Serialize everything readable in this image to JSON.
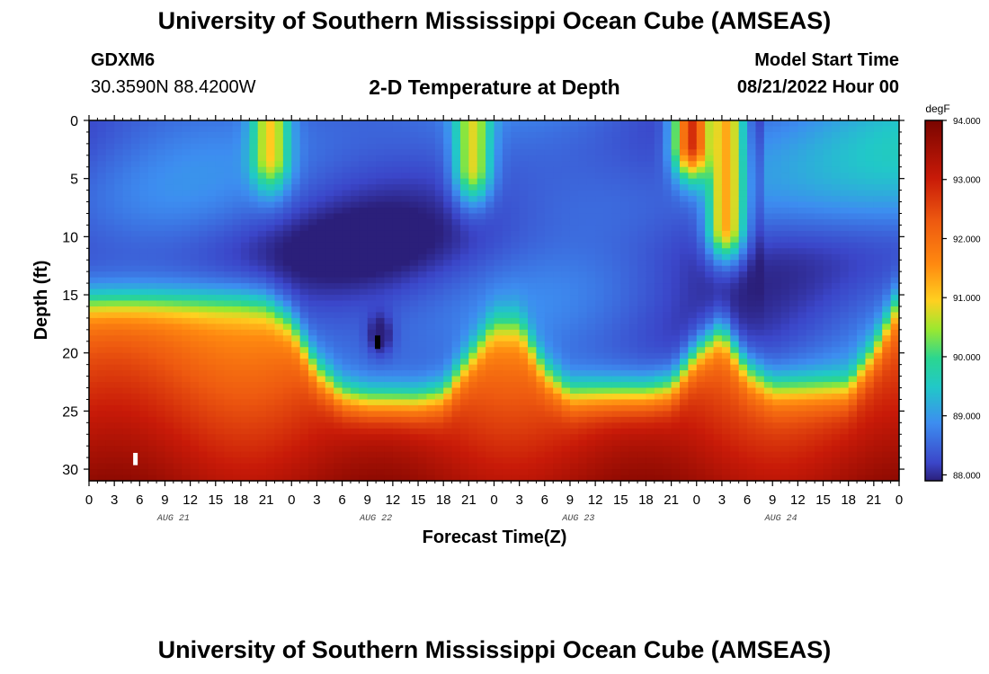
{
  "header": {
    "title": "University of Southern Mississippi Ocean Cube (AMSEAS)",
    "station": "GDXM6",
    "coordinates": "30.3590N  88.4200W",
    "subtitle": "2-D Temperature at Depth",
    "model_start_label": "Model Start Time",
    "model_start_value": "08/21/2022 Hour 00"
  },
  "footer": {
    "title": "University of Southern Mississippi Ocean Cube (AMSEAS)"
  },
  "chart_data": {
    "type": "heatmap",
    "title": "2-D Temperature at Depth",
    "xlabel": "Forecast Time(Z)",
    "ylabel": "Depth (ft)",
    "x_tick_labels": [
      "0",
      "3",
      "6",
      "9",
      "12",
      "15",
      "18",
      "21",
      "0",
      "3",
      "6",
      "9",
      "12",
      "15",
      "18",
      "21",
      "0",
      "3",
      "6",
      "9",
      "12",
      "15",
      "18",
      "21",
      "0",
      "3",
      "6",
      "9",
      "12",
      "15",
      "18",
      "21",
      "0"
    ],
    "date_labels": [
      "AUG 21",
      "AUG 22",
      "AUG 23",
      "AUG 24"
    ],
    "xlim_hours": [
      0,
      96
    ],
    "y_ticks": [
      0,
      5,
      10,
      15,
      20,
      25,
      30
    ],
    "ylim_ft": [
      0,
      31
    ],
    "colorbar": {
      "unit": "degF",
      "min": 87.9,
      "max": 94.0,
      "tick_labels": [
        "94.000",
        "93.000",
        "92.000",
        "91.000",
        "90.000",
        "89.000",
        "88.000"
      ],
      "tick_values": [
        94,
        93,
        92,
        91,
        90,
        89,
        88
      ]
    },
    "structure": {
      "thermocline_depth_ft_by_hour": [
        [
          0,
          15.5
        ],
        [
          3,
          15.5
        ],
        [
          6,
          15.5
        ],
        [
          9,
          15.5
        ],
        [
          12,
          15.5
        ],
        [
          15,
          15.5
        ],
        [
          18,
          15.5
        ],
        [
          21,
          15.8
        ],
        [
          24,
          17.5
        ],
        [
          27,
          21.5
        ],
        [
          30,
          23.5
        ],
        [
          33,
          24
        ],
        [
          36,
          24
        ],
        [
          39,
          24
        ],
        [
          42,
          23.5
        ],
        [
          45,
          20.5
        ],
        [
          48,
          17.5
        ],
        [
          51,
          17.5
        ],
        [
          54,
          21.5
        ],
        [
          57,
          23.5
        ],
        [
          60,
          23.5
        ],
        [
          63,
          23.5
        ],
        [
          66,
          23.5
        ],
        [
          69,
          23
        ],
        [
          72,
          20
        ],
        [
          75,
          18
        ],
        [
          78,
          21.5
        ],
        [
          81,
          23
        ],
        [
          84,
          23
        ],
        [
          87,
          23
        ],
        [
          90,
          23
        ],
        [
          93,
          20
        ],
        [
          96,
          15.5
        ]
      ],
      "surface_warm_events": [
        {
          "hour": 21.5,
          "depth_max_ft": 3,
          "peak_degF": 91.0
        },
        {
          "hour": 45.5,
          "depth_max_ft": 4,
          "peak_degF": 90.8
        },
        {
          "hour": 71.5,
          "depth_max_ft": 2,
          "peak_degF": 92.8
        },
        {
          "hour": 75.5,
          "depth_max_ft": 9,
          "peak_degF": 91.3
        }
      ],
      "upper_layer_base_degF": 88.5,
      "bottom_layer_degF": 93.1
    }
  }
}
